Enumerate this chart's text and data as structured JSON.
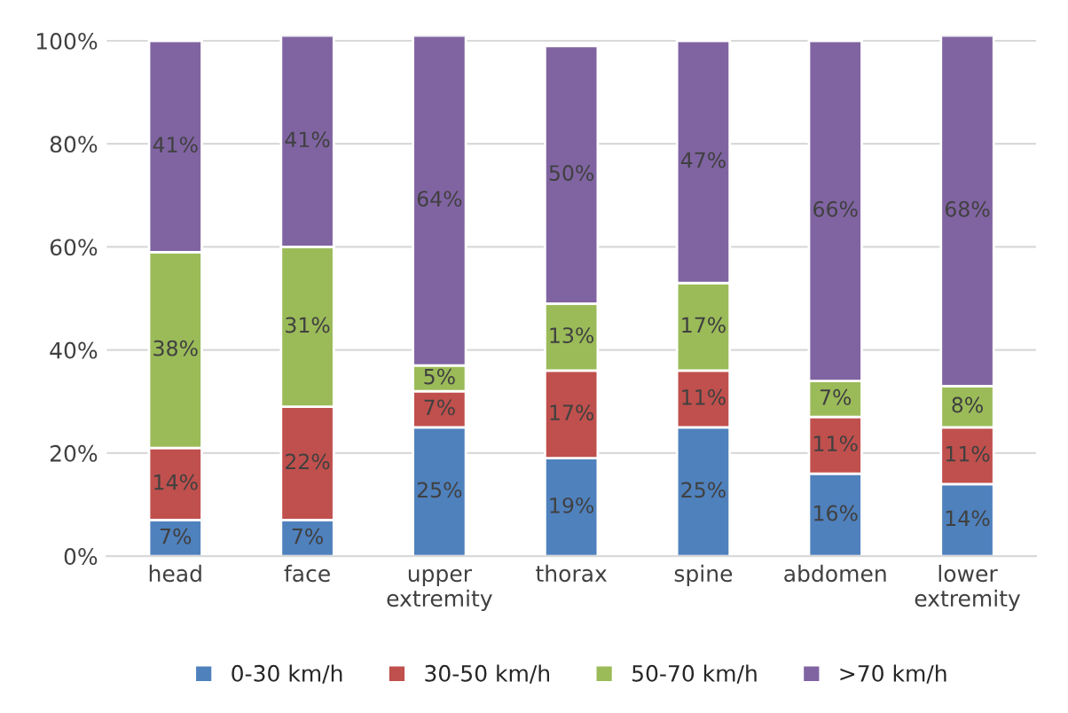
{
  "chart_data": {
    "type": "bar",
    "stacked": true,
    "categories": [
      "head",
      "face",
      "upper\nextremity",
      "thorax",
      "spine",
      "abdomen",
      "lower\nextremity"
    ],
    "series": [
      {
        "name": "0-30 km/h",
        "color": "#4f81bd",
        "values": [
          7,
          7,
          25,
          19,
          25,
          16,
          14
        ],
        "value_labels": [
          "7%",
          "7%",
          "25%",
          "19%",
          "25%",
          "16%",
          "14%"
        ]
      },
      {
        "name": "30-50 km/h",
        "color": "#c0504d",
        "values": [
          14,
          22,
          7,
          17,
          11,
          11,
          11
        ],
        "value_labels": [
          "14%",
          "22%",
          "7%",
          "17%",
          "11%",
          "11%",
          "11%"
        ]
      },
      {
        "name": "50-70 km/h",
        "color": "#9bbb59",
        "values": [
          38,
          31,
          5,
          13,
          17,
          7,
          8
        ],
        "value_labels": [
          "38%",
          "31%",
          "5%",
          "13%",
          "17%",
          "7%",
          "8%"
        ]
      },
      {
        "name": ">70 km/h",
        "color": "#8064a2",
        "values": [
          41,
          41,
          64,
          50,
          47,
          66,
          68
        ],
        "value_labels": [
          "41%",
          "41%",
          "64%",
          "50%",
          "47%",
          "66%",
          "68%"
        ]
      }
    ],
    "ylim": [
      0,
      101
    ],
    "yticks": [
      {
        "value": 0,
        "label": "0%"
      },
      {
        "value": 20,
        "label": "20%"
      },
      {
        "value": 40,
        "label": "40%"
      },
      {
        "value": 60,
        "label": "60%"
      },
      {
        "value": 80,
        "label": "80%"
      },
      {
        "value": 100,
        "label": "100%"
      }
    ],
    "grid": "y",
    "legend": "bottom"
  }
}
